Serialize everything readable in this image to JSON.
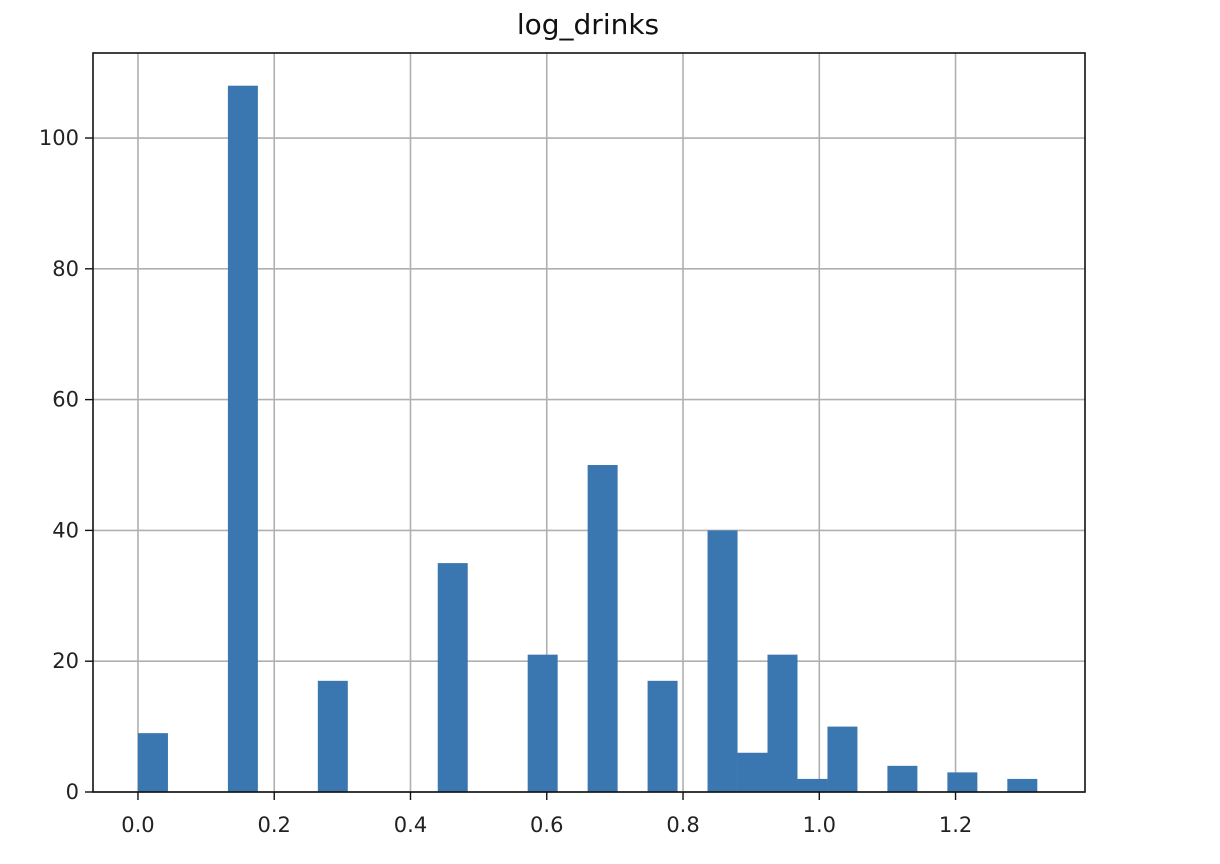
{
  "chart_data": {
    "type": "bar",
    "title": "log_drinks",
    "xlabel": "",
    "ylabel": "",
    "xlim": [
      -0.066,
      1.39
    ],
    "ylim": [
      0,
      113
    ],
    "grid": true,
    "bar_color": "#3a76b0",
    "bin_width": 0.044,
    "bins": [
      {
        "x": 0.022,
        "y": 9
      },
      {
        "x": 0.154,
        "y": 108
      },
      {
        "x": 0.286,
        "y": 17
      },
      {
        "x": 0.462,
        "y": 35
      },
      {
        "x": 0.594,
        "y": 21
      },
      {
        "x": 0.682,
        "y": 50
      },
      {
        "x": 0.77,
        "y": 17
      },
      {
        "x": 0.858,
        "y": 40
      },
      {
        "x": 0.902,
        "y": 6
      },
      {
        "x": 0.946,
        "y": 21
      },
      {
        "x": 0.99,
        "y": 2
      },
      {
        "x": 1.034,
        "y": 10
      },
      {
        "x": 1.122,
        "y": 4
      },
      {
        "x": 1.21,
        "y": 3
      },
      {
        "x": 1.298,
        "y": 2
      }
    ],
    "x_ticks": [
      {
        "value": 0.0,
        "label": "0.0"
      },
      {
        "value": 0.2,
        "label": "0.2"
      },
      {
        "value": 0.4,
        "label": "0.4"
      },
      {
        "value": 0.6,
        "label": "0.6"
      },
      {
        "value": 0.8,
        "label": "0.8"
      },
      {
        "value": 1.0,
        "label": "1.0"
      },
      {
        "value": 1.2,
        "label": "1.2"
      }
    ],
    "y_ticks": [
      {
        "value": 0,
        "label": "0"
      },
      {
        "value": 20,
        "label": "20"
      },
      {
        "value": 40,
        "label": "40"
      },
      {
        "value": 60,
        "label": "60"
      },
      {
        "value": 80,
        "label": "80"
      },
      {
        "value": 100,
        "label": "100"
      }
    ]
  }
}
